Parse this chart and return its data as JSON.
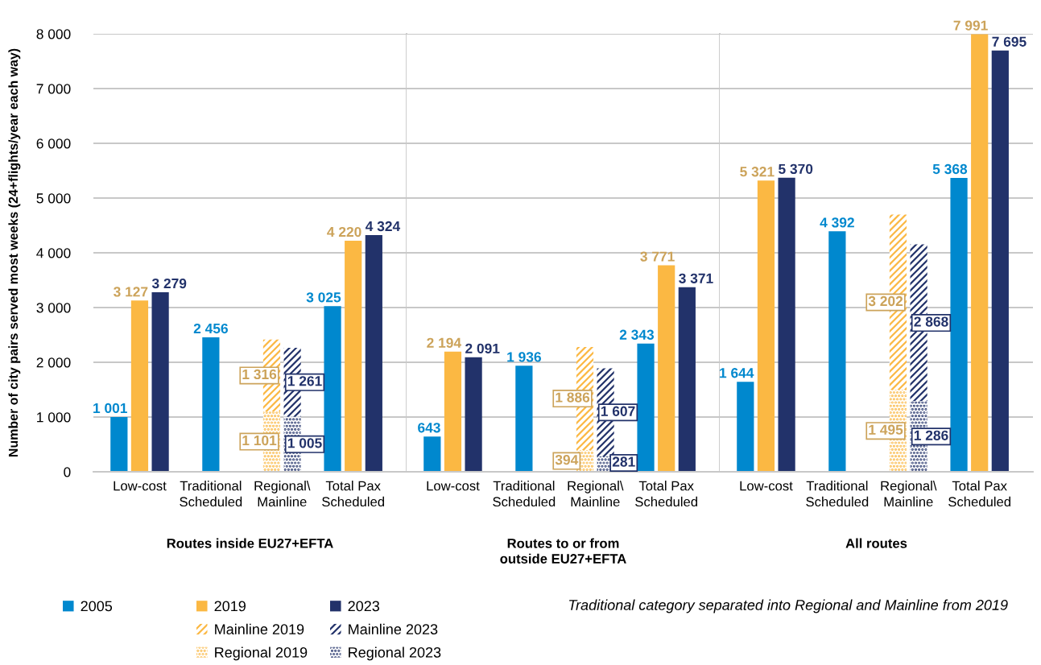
{
  "chart_data": [
    {
      "type": "bar",
      "xlabel": "Routes inside EU27+EFTA",
      "ylabel": "Number of city pairs served most weeks (24+flights/year each way)",
      "categories": [
        "Low-cost",
        "Traditional\nScheduled",
        "Regional\\\nMainline",
        "Total Pax\nScheduled"
      ],
      "ylim": [
        0,
        8000
      ],
      "yticks": [
        0,
        {
          "value": 1000,
          "label": "1 000"
        },
        {
          "value": 2000,
          "label": "2 000"
        },
        {
          "value": 3000,
          "label": "3 000"
        },
        {
          "value": 4000,
          "label": "4 000"
        },
        {
          "value": 5000,
          "label": "5 000"
        },
        {
          "value": 6000,
          "label": "6 000"
        },
        {
          "value": 7000,
          "label": "7 000"
        },
        {
          "value": 8000,
          "label": "8 000"
        }
      ],
      "grid": "y",
      "legend": "bottom",
      "series": [
        {
          "name": "2005",
          "color": "#0088ce",
          "values": [
            1001,
            2456,
            null,
            3025
          ],
          "value_labels": [
            "1 001",
            "2 456",
            null,
            "3 025"
          ]
        },
        {
          "name": "2019",
          "color": "#fbb843",
          "values": [
            3127,
            null,
            null,
            4220
          ],
          "value_labels": [
            "3 127",
            null,
            null,
            "4 220"
          ]
        },
        {
          "name": "2023",
          "color": "#22326a",
          "values": [
            3279,
            null,
            null,
            4324
          ],
          "value_labels": [
            "3 279",
            null,
            null,
            "4 324"
          ]
        },
        {
          "name": "Mainline 2019",
          "color": "#fbb843",
          "line_style": "dashed",
          "values": [
            null,
            null,
            1316,
            null
          ],
          "base": [
            null,
            null,
            1101,
            null
          ],
          "value_labels": [
            null,
            null,
            "1 316",
            null
          ]
        },
        {
          "name": "Mainline 2023",
          "color": "#22326a",
          "line_style": "dashed",
          "values": [
            null,
            null,
            1261,
            null
          ],
          "base": [
            null,
            null,
            1005,
            null
          ],
          "value_labels": [
            null,
            null,
            "1 261",
            null
          ]
        },
        {
          "name": "Regional 2019",
          "color": "#fbb843",
          "line_style": "dotted",
          "values": [
            null,
            null,
            1101,
            null
          ],
          "value_labels": [
            null,
            null,
            "1 101",
            null
          ]
        },
        {
          "name": "Regional 2023",
          "color": "#22326a",
          "line_style": "dotted",
          "values": [
            null,
            null,
            1005,
            null
          ],
          "value_labels": [
            null,
            null,
            "1 005",
            null
          ]
        }
      ]
    },
    {
      "type": "bar",
      "xlabel": "Routes to or from\noutside EU27+EFTA",
      "categories": [
        "Low-cost",
        "Traditional\nScheduled",
        "Regional\\\nMainline",
        "Total Pax\nScheduled"
      ],
      "ylim": [
        0,
        8000
      ],
      "yticks": [
        0,
        1000,
        2000,
        3000,
        4000,
        5000,
        6000,
        7000,
        8000
      ],
      "grid": "y",
      "tick_labels": "x",
      "series": [
        {
          "name": "2005",
          "color": "#0088ce",
          "values": [
            643,
            1936,
            null,
            2343
          ],
          "value_labels": [
            "643",
            "1 936",
            null,
            "2 343"
          ]
        },
        {
          "name": "2019",
          "color": "#fbb843",
          "values": [
            2194,
            null,
            null,
            3771
          ],
          "value_labels": [
            "2 194",
            null,
            null,
            "3 771"
          ]
        },
        {
          "name": "2023",
          "color": "#22326a",
          "values": [
            2091,
            null,
            null,
            3371
          ],
          "value_labels": [
            "2 091",
            null,
            null,
            "3 371"
          ]
        },
        {
          "name": "Mainline 2019",
          "color": "#fbb843",
          "line_style": "dashed",
          "values": [
            null,
            null,
            1886,
            null
          ],
          "base": [
            null,
            null,
            394,
            null
          ],
          "value_labels": [
            null,
            null,
            "1 886",
            null
          ]
        },
        {
          "name": "Mainline 2023",
          "color": "#22326a",
          "line_style": "dashed",
          "values": [
            null,
            null,
            1607,
            null
          ],
          "base": [
            null,
            null,
            281,
            null
          ],
          "value_labels": [
            null,
            null,
            "1 607",
            null
          ]
        },
        {
          "name": "Regional 2019",
          "color": "#fbb843",
          "line_style": "dotted",
          "values": [
            null,
            null,
            394,
            null
          ],
          "value_labels": [
            null,
            null,
            "394",
            null
          ]
        },
        {
          "name": "Regional 2023",
          "color": "#22326a",
          "line_style": "dotted",
          "values": [
            null,
            null,
            281,
            null
          ],
          "value_labels": [
            null,
            null,
            "281",
            null
          ]
        }
      ]
    },
    {
      "type": "bar",
      "xlabel": "All routes",
      "categories": [
        "Low-cost",
        "Traditional\nScheduled",
        "Regional\\\nMainline",
        "Total Pax\nScheduled"
      ],
      "ylim": [
        0,
        8000
      ],
      "yticks": [
        0,
        1000,
        2000,
        3000,
        4000,
        5000,
        6000,
        7000,
        8000
      ],
      "grid": "y",
      "tick_labels": "x",
      "annotations": [
        "Traditional category separated into Regional and Mainline from 2019"
      ],
      "series": [
        {
          "name": "2005",
          "color": "#0088ce",
          "values": [
            1644,
            4392,
            null,
            5368
          ],
          "value_labels": [
            "1 644",
            "4 392",
            null,
            "5 368"
          ]
        },
        {
          "name": "2019",
          "color": "#fbb843",
          "values": [
            5321,
            null,
            null,
            7991
          ],
          "value_labels": [
            "5 321",
            null,
            null,
            "7 991"
          ]
        },
        {
          "name": "2023",
          "color": "#22326a",
          "values": [
            5370,
            null,
            null,
            7695
          ],
          "value_labels": [
            "5 370",
            null,
            null,
            "7 695"
          ]
        },
        {
          "name": "Mainline 2019",
          "color": "#fbb843",
          "line_style": "dashed",
          "values": [
            null,
            null,
            3202,
            null
          ],
          "base": [
            null,
            null,
            1495,
            null
          ],
          "value_labels": [
            null,
            null,
            "3 202",
            null
          ]
        },
        {
          "name": "Mainline 2023",
          "color": "#22326a",
          "line_style": "dashed",
          "values": [
            null,
            null,
            2868,
            null
          ],
          "base": [
            null,
            null,
            1286,
            null
          ],
          "value_labels": [
            null,
            null,
            "2 868",
            null
          ]
        },
        {
          "name": "Regional 2019",
          "color": "#fbb843",
          "line_style": "dotted",
          "values": [
            null,
            null,
            1495,
            null
          ],
          "value_labels": [
            null,
            null,
            "1 495",
            null
          ]
        },
        {
          "name": "Regional 2023",
          "color": "#22326a",
          "line_style": "dotted",
          "values": [
            null,
            null,
            1286,
            null
          ],
          "value_labels": [
            null,
            null,
            "1 286",
            null
          ]
        }
      ]
    }
  ]
}
